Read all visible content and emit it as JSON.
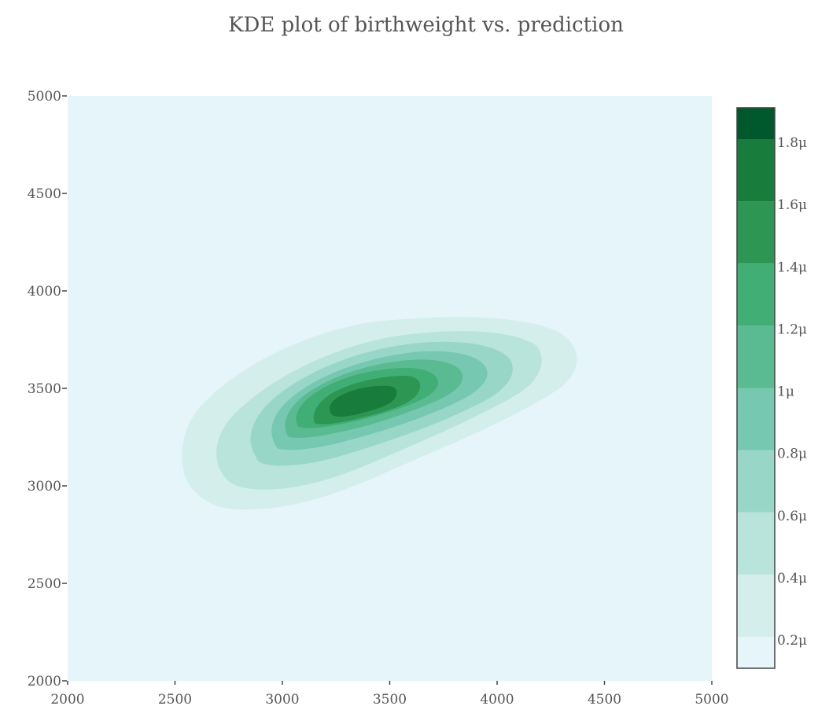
{
  "chart_data": {
    "type": "kde-contour",
    "title": "KDE plot of birthweight vs. prediction",
    "xlabel": "",
    "ylabel": "",
    "xlim": [
      2000,
      5000
    ],
    "ylim": [
      2000,
      5000
    ],
    "x_ticks": [
      "2000",
      "2500",
      "3000",
      "3500",
      "4000",
      "4500",
      "5000"
    ],
    "y_ticks": [
      "2000",
      "2500",
      "3000",
      "3500",
      "4000",
      "4500",
      "5000"
    ],
    "density_peak": {
      "x": 3380,
      "y": 3420
    },
    "contour_levels": [
      {
        "level": 0.0,
        "color": "#e5f5f9"
      },
      {
        "level": 0.2,
        "color": "#d4efeb"
      },
      {
        "level": 0.4,
        "color": "#b8e4db"
      },
      {
        "level": 0.6,
        "color": "#98d7c7"
      },
      {
        "level": 0.8,
        "color": "#77c8b0"
      },
      {
        "level": 1.0,
        "color": "#5abb93"
      },
      {
        "level": 1.2,
        "color": "#41ae76"
      },
      {
        "level": 1.4,
        "color": "#2c9652"
      },
      {
        "level": 1.6,
        "color": "#187c3d"
      },
      {
        "level": 1.8,
        "color": "#00592c"
      }
    ],
    "colorbar": {
      "ticks": [
        "0.2μ",
        "0.4μ",
        "0.6μ",
        "0.8μ",
        "1μ",
        "1.2μ",
        "1.4μ",
        "1.6μ",
        "1.8μ"
      ]
    },
    "plot_background": "#e5f5f9"
  }
}
